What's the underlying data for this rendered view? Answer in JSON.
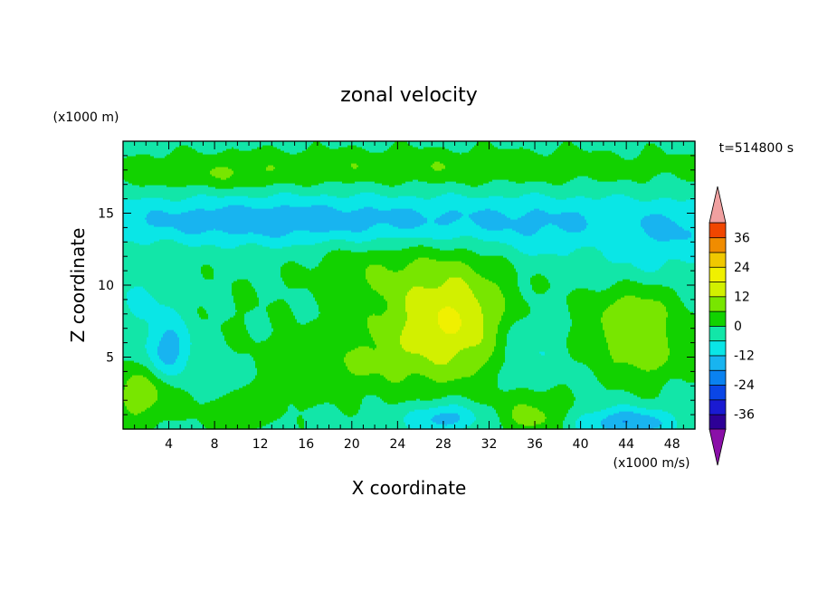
{
  "chart_data": {
    "type": "heatmap",
    "title": "zonal velocity",
    "time_label": "t=514800 s",
    "xlabel": "X coordinate",
    "ylabel": "Z coordinate",
    "x_unit": "(x1000 m)",
    "colorbar_unit": "(x1000 m/s)",
    "xlim": [
      0,
      50
    ],
    "ylim": [
      0,
      20
    ],
    "x_ticks": [
      "4",
      "8",
      "12",
      "16",
      "20",
      "24",
      "28",
      "32",
      "36",
      "40",
      "44",
      "48"
    ],
    "x_tick_values": [
      4,
      8,
      12,
      16,
      20,
      24,
      28,
      32,
      36,
      40,
      44,
      48
    ],
    "y_ticks": [
      "5",
      "10",
      "15"
    ],
    "y_tick_values": [
      5,
      10,
      15
    ],
    "colorbar_labels": [
      "36",
      "24",
      "12",
      "0",
      "-12",
      "-24",
      "-36"
    ],
    "colorbar_label_values": [
      36,
      24,
      12,
      0,
      -12,
      -24,
      -36
    ],
    "levels": [
      -42,
      -36,
      -30,
      -24,
      -18,
      -12,
      -6,
      0,
      6,
      12,
      18,
      24,
      30,
      36,
      42
    ],
    "level_colors": [
      "#8a0fa8",
      "#2d0096",
      "#1a1ad2",
      "#0a46e6",
      "#0a82f0",
      "#18b4f0",
      "#0ae6e6",
      "#12e6a8",
      "#12d200",
      "#78e600",
      "#d2f000",
      "#f0f000",
      "#f0c800",
      "#f08c00",
      "#f04600",
      "#e6140a",
      "#f0a0a0"
    ],
    "colors": {
      "axis": "#000000",
      "background": "#ffffff"
    }
  }
}
